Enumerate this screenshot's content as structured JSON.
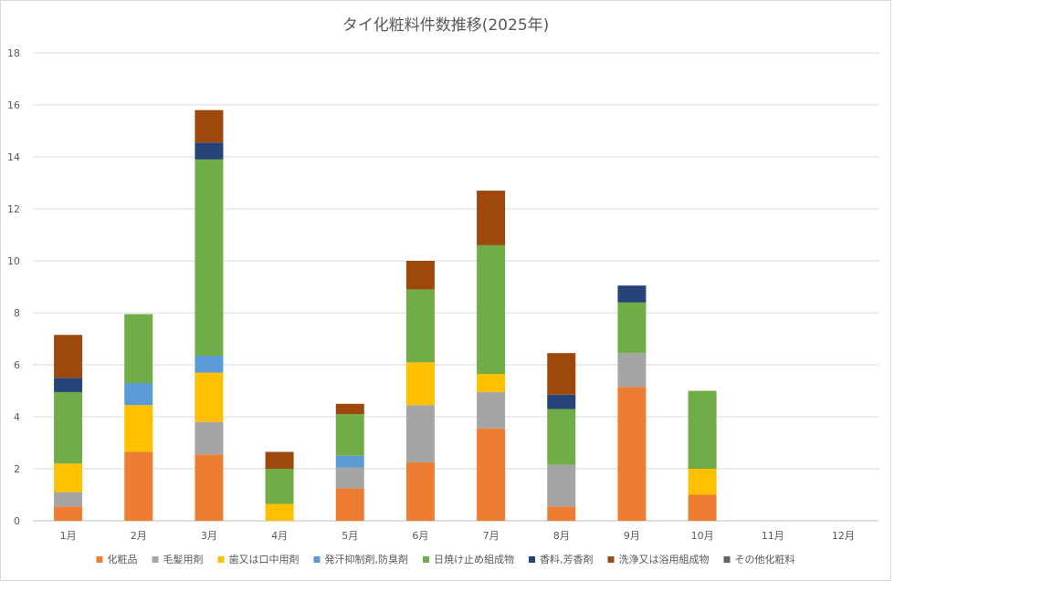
{
  "chart_data": {
    "type": "bar",
    "stacked": true,
    "title": "タイ化粧料件数推移(2025年)",
    "xlabel": "",
    "ylabel": "",
    "ylim": [
      0,
      18
    ],
    "yticks": [
      0,
      2,
      4,
      6,
      8,
      10,
      12,
      14,
      16,
      18
    ],
    "grid": true,
    "legend_position": "bottom",
    "categories": [
      "1月",
      "2月",
      "3月",
      "4月",
      "5月",
      "6月",
      "7月",
      "8月",
      "9月",
      "10月",
      "11月",
      "12月"
    ],
    "series": [
      {
        "name": "化粧品",
        "color": "#ED7D31",
        "values": [
          0.55,
          2.65,
          2.55,
          0,
          1.25,
          2.25,
          3.55,
          0.55,
          5.15,
          1.0,
          0,
          0
        ]
      },
      {
        "name": "毛髪用剤",
        "color": "#A5A5A5",
        "values": [
          0.55,
          0,
          1.25,
          0,
          0.8,
          2.2,
          1.4,
          1.6,
          1.3,
          0,
          0,
          0
        ]
      },
      {
        "name": "歯又は口中用剤",
        "color": "#FFC000",
        "values": [
          1.1,
          1.8,
          1.9,
          0.65,
          0,
          1.65,
          0.7,
          0,
          0,
          1.0,
          0,
          0
        ]
      },
      {
        "name": "発汗抑制剤,防臭剤",
        "color": "#5B9BD5",
        "values": [
          0,
          0.85,
          0.65,
          0,
          0.45,
          0,
          0,
          0,
          0,
          0,
          0,
          0
        ]
      },
      {
        "name": "日焼け止め組成物",
        "color": "#70AD47",
        "values": [
          2.75,
          2.65,
          7.55,
          1.35,
          1.6,
          2.8,
          4.95,
          2.15,
          1.95,
          3.0,
          0,
          0
        ]
      },
      {
        "name": "香料,芳香剤",
        "color": "#264478",
        "values": [
          0.55,
          0,
          0.65,
          0,
          0,
          0,
          0,
          0.55,
          0.65,
          0,
          0,
          0
        ]
      },
      {
        "name": "洗浄又は浴用組成物",
        "color": "#9E480E",
        "values": [
          1.65,
          0,
          1.25,
          0.65,
          0.4,
          1.1,
          2.1,
          1.6,
          0,
          0,
          0,
          0
        ]
      },
      {
        "name": "その他化粧料",
        "color": "#636363",
        "values": [
          0,
          0,
          0,
          0,
          0,
          0,
          0,
          0,
          0,
          0,
          0,
          0
        ]
      }
    ]
  }
}
